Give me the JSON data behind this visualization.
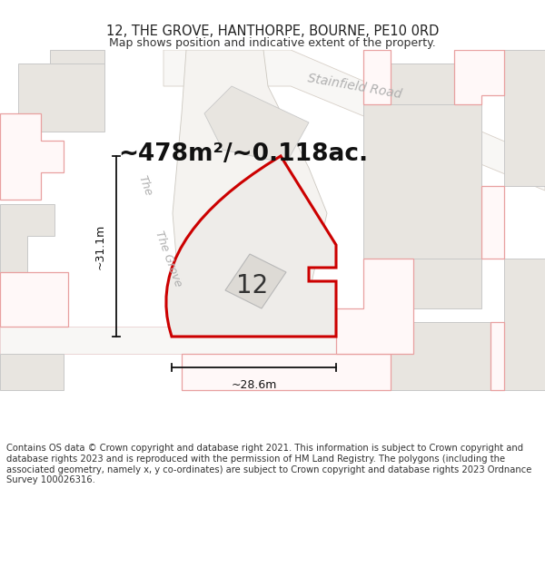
{
  "title": "12, THE GROVE, HANTHORPE, BOURNE, PE10 0RD",
  "subtitle": "Map shows position and indicative extent of the property.",
  "area_text": "~478m²/~0.118ac.",
  "label_12": "12",
  "dim_width": "~28.6m",
  "dim_height": "~31.1m",
  "road_label_1": "Stainfield Road",
  "road_label_2": "The Grove",
  "footer": "Contains OS data © Crown copyright and database right 2021. This information is subject to Crown copyright and database rights 2023 and is reproduced with the permission of HM Land Registry. The polygons (including the associated geometry, namely x, y co-ordinates) are subject to Crown copyright and database rights 2023 Ordnance Survey 100026316.",
  "map_bg": "#f5f4f2",
  "prop_fill": "#eeebe8",
  "prop_outline": "#cc0000",
  "road_fill": "#ffffff",
  "road_edge": "#e8b0b0",
  "bld_fill": "#e8e5e0",
  "bld_edge": "#c8c8c8",
  "pink_fill": "#fff8f8",
  "pink_edge": "#e8a0a0",
  "grey_fill": "#eae8e5",
  "grey_edge": "#bbbbbb",
  "dim_color": "#111111",
  "road_text_color": "#b0b0b0",
  "title_fontsize": 10.5,
  "subtitle_fontsize": 9,
  "area_fontsize": 19,
  "label_fontsize": 20,
  "footer_fontsize": 7.2
}
